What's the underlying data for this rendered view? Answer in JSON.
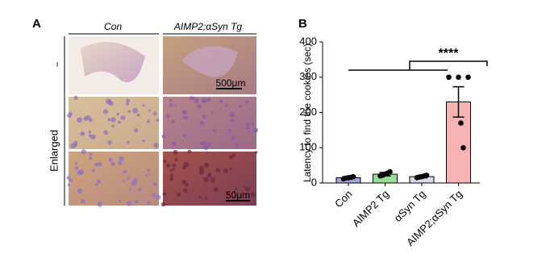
{
  "panel_a": {
    "label": "A",
    "columns": [
      "Con",
      "AIMP2;αSyn Tg"
    ],
    "row_labels": [
      "−",
      "Enlarged"
    ],
    "scale_bars": [
      "500μm",
      "50μm"
    ]
  },
  "chart_data": {
    "type": "bar",
    "label": "B",
    "ylabel": "Latency to find the cookies (sec)",
    "categories": [
      "Con",
      "AIMP2 Tg",
      "αSyn Tg",
      "AIMP2;αSyn Tg"
    ],
    "values": [
      15,
      25,
      18,
      230
    ],
    "errors": [
      3,
      5,
      3,
      43
    ],
    "colors": [
      "#a3a6dc",
      "#95dd95",
      "#d9d9ee",
      "#f7b3b3"
    ],
    "points": [
      [
        12,
        14,
        15,
        16,
        18
      ],
      [
        20,
        22,
        25,
        28,
        32
      ],
      [
        15,
        17,
        18,
        20,
        22
      ],
      [
        300,
        300,
        300,
        170,
        100
      ]
    ],
    "ylim": [
      0,
      400
    ],
    "yticks": [
      0,
      100,
      200,
      300,
      400
    ],
    "annotation": "****"
  }
}
